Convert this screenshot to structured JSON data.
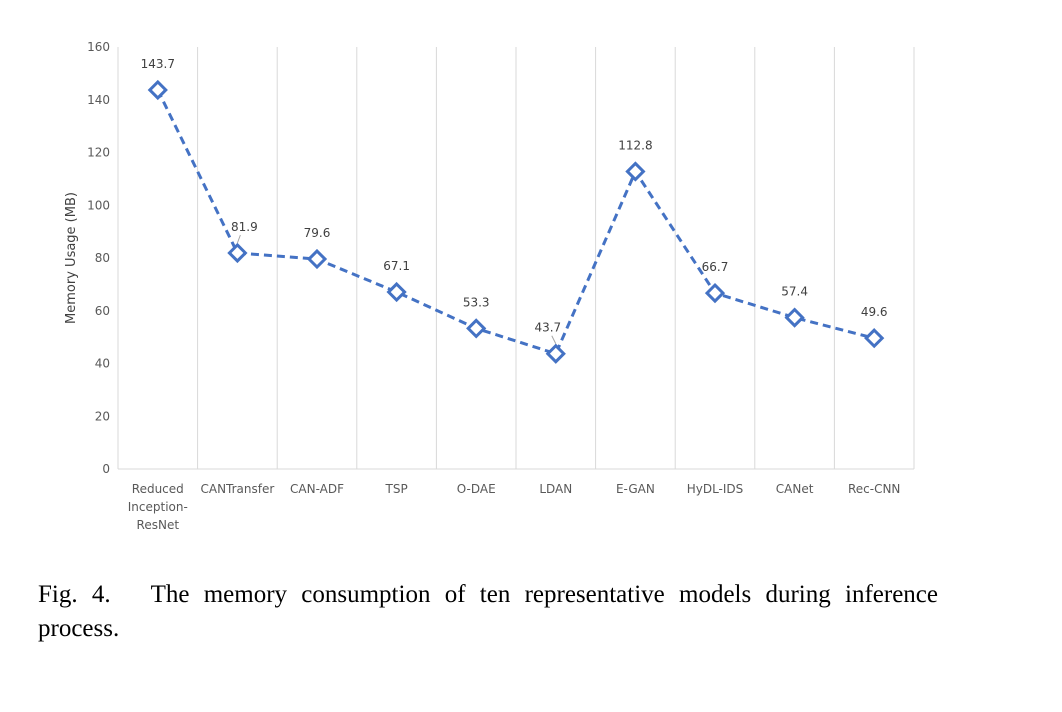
{
  "caption": {
    "fig_number": "Fig. 4.",
    "text": "The memory consumption of ten representative models during inference process."
  },
  "colors": {
    "series": "#4472C4",
    "grid": "#D9D9D9",
    "axis_text": "#595959"
  },
  "chart_data": {
    "type": "line",
    "categories": [
      "Reduced Inception-ResNet",
      "CANTransfer",
      "CAN-ADF",
      "TSP",
      "O-DAE",
      "LDAN",
      "E-GAN",
      "HyDL-IDS",
      "CANet",
      "Rec-CNN"
    ],
    "category_lines": [
      [
        "Reduced",
        "Inception-",
        "ResNet"
      ],
      [
        "CANTransfer"
      ],
      [
        "CAN-ADF"
      ],
      [
        "TSP"
      ],
      [
        "O-DAE"
      ],
      [
        "LDAN"
      ],
      [
        "E-GAN"
      ],
      [
        "HyDL-IDS"
      ],
      [
        "CANet"
      ],
      [
        "Rec-CNN"
      ]
    ],
    "values": [
      143.7,
      81.9,
      79.6,
      67.1,
      53.3,
      43.7,
      112.8,
      66.7,
      57.4,
      49.6
    ],
    "value_labels": [
      "143.7",
      "81.9",
      "79.6",
      "67.1",
      "53.3",
      "43.7",
      "112.8",
      "66.7",
      "57.4",
      "49.6"
    ],
    "ylabel": "Memory Usage (MB)",
    "xlabel": "",
    "ylim": [
      0,
      160
    ],
    "yticks": [
      0,
      20,
      40,
      60,
      80,
      100,
      120,
      140,
      160
    ],
    "line_style": "dashed",
    "marker": "diamond",
    "grid": "vertical category gridlines",
    "legend": "none"
  }
}
